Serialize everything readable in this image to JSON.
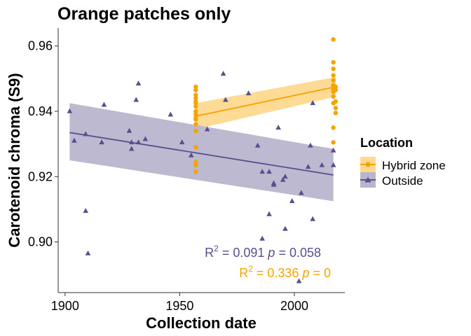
{
  "chart_data": {
    "type": "scatter",
    "title": "Orange patches only",
    "xlabel": "Collection date",
    "ylabel": "Carotenoid chroma (S9)",
    "xlim": [
      1897,
      2022
    ],
    "ylim": [
      0.8845,
      0.9655
    ],
    "xticks": [
      1900,
      1950,
      2000
    ],
    "yticks": [
      0.9,
      0.92,
      0.94,
      0.96
    ],
    "xtick_labels": [
      "1900",
      "1950",
      "2000"
    ],
    "ytick_labels": [
      "0.90",
      "0.92",
      "0.94",
      "0.96"
    ],
    "grid": false,
    "legend": {
      "title": "Location",
      "position": "right",
      "entries": [
        "Hybrid zone",
        "Outside"
      ]
    },
    "series": [
      {
        "name": "Hybrid zone",
        "color": "#F5A300",
        "band_color": "#FED98E",
        "marker": "circle",
        "points": [
          [
            1957,
            0.9215
          ],
          [
            1957,
            0.9235
          ],
          [
            1957,
            0.9245
          ],
          [
            1957,
            0.929
          ],
          [
            1957,
            0.934
          ],
          [
            1957,
            0.936
          ],
          [
            1957,
            0.9375
          ],
          [
            1957,
            0.938
          ],
          [
            1957,
            0.939
          ],
          [
            1957,
            0.94
          ],
          [
            1957,
            0.9415
          ],
          [
            1957,
            0.9425
          ],
          [
            1957,
            0.943
          ],
          [
            1957,
            0.944
          ],
          [
            1957,
            0.945
          ],
          [
            1957,
            0.9465
          ],
          [
            1957,
            0.9475
          ],
          [
            2017,
            0.9305
          ],
          [
            2017,
            0.935
          ],
          [
            2017,
            0.9425
          ],
          [
            2017,
            0.9445
          ],
          [
            2017,
            0.946
          ],
          [
            2017,
            0.9465
          ],
          [
            2017,
            0.947
          ],
          [
            2017,
            0.9475
          ],
          [
            2017,
            0.948
          ],
          [
            2017,
            0.9495
          ],
          [
            2017,
            0.951
          ],
          [
            2017,
            0.953
          ],
          [
            2017,
            0.955
          ],
          [
            2017,
            0.962
          ],
          [
            2018,
            0.9395
          ],
          [
            2018,
            0.941
          ],
          [
            2018,
            0.943
          ],
          [
            2018,
            0.9465
          ],
          [
            2018,
            0.9475
          ]
        ],
        "fit": {
          "x": [
            1957,
            2018
          ],
          "y": [
            0.9385,
            0.9475
          ],
          "lower": [
            0.9345,
            0.9445
          ],
          "upper": [
            0.9425,
            0.9505
          ]
        }
      },
      {
        "name": "Outside",
        "color": "#5A4E8C",
        "band_color": "#B8B5CF",
        "marker": "triangle",
        "points": [
          [
            1902,
            0.94
          ],
          [
            1904,
            0.931
          ],
          [
            1909,
            0.9095
          ],
          [
            1909,
            0.933
          ],
          [
            1910,
            0.8965
          ],
          [
            1917,
            0.942
          ],
          [
            1916,
            0.9305
          ],
          [
            1928,
            0.934
          ],
          [
            1929,
            0.9305
          ],
          [
            1929,
            0.9285
          ],
          [
            1931,
            0.9435
          ],
          [
            1932,
            0.9485
          ],
          [
            1932,
            0.9305
          ],
          [
            1935,
            0.9315
          ],
          [
            1946,
            0.939
          ],
          [
            1951,
            0.9305
          ],
          [
            1955,
            0.9265
          ],
          [
            1962,
            0.9345
          ],
          [
            1969,
            0.9515
          ],
          [
            1970,
            0.9435
          ],
          [
            1980,
            0.9455
          ],
          [
            1984,
            0.9295
          ],
          [
            1986,
            0.9215
          ],
          [
            1986,
            0.901
          ],
          [
            1989,
            0.9215
          ],
          [
            1989,
            0.9085
          ],
          [
            1991,
            0.9175
          ],
          [
            1991,
            0.918
          ],
          [
            1993,
            0.935
          ],
          [
            1995,
            0.919
          ],
          [
            1996,
            0.92
          ],
          [
            1996,
            0.904
          ],
          [
            1999,
            0.9125
          ],
          [
            2002,
            0.888
          ],
          [
            2003,
            0.915
          ],
          [
            2006,
            0.923
          ],
          [
            2007,
            0.9295
          ],
          [
            2008,
            0.907
          ],
          [
            2008,
            0.9425
          ],
          [
            2012,
            0.9235
          ],
          [
            2017,
            0.928
          ],
          [
            2017,
            0.9235
          ]
        ],
        "fit": {
          "x": [
            1902,
            2017
          ],
          "y": [
            0.9335,
            0.9205
          ],
          "lower": [
            0.925,
            0.9125
          ],
          "upper": [
            0.9425,
            0.9285
          ]
        }
      }
    ],
    "annotations": [
      {
        "series": "Outside",
        "r2_label": "R",
        "r2_sup": "2",
        "r2_value": " = 0.091  ",
        "p_label": "p",
        "p_value": " = 0.058"
      },
      {
        "series": "Hybrid zone",
        "r2_label": "R",
        "r2_sup": "2",
        "r2_value": " = 0.336  ",
        "p_label": "p",
        "p_value": " = 0"
      }
    ]
  }
}
